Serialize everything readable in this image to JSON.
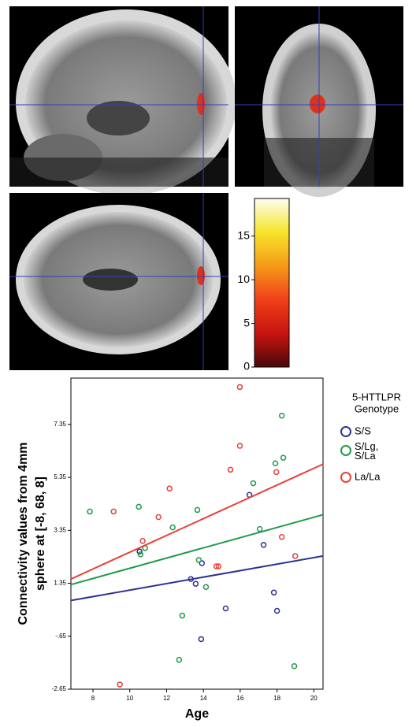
{
  "chart_data": [
    {
      "type": "colorbar",
      "ylim": [
        0,
        19.3
      ],
      "yticks": [
        0,
        5,
        10,
        15
      ],
      "colors": [
        "#4a0808",
        "#c8140f",
        "#f0401a",
        "#f59a18",
        "#f5e42a",
        "#fffff2"
      ]
    },
    {
      "type": "scatter",
      "y_label": [
        "Connectivity values from 4mm",
        "sphere at [-8, 68, 8]"
      ],
      "x_label": "Age",
      "legend_title": [
        "5-HTTLPR",
        "Genotype"
      ],
      "xlim": [
        6.8,
        20.5
      ],
      "xticks": [
        8,
        10,
        12,
        14,
        16,
        18,
        20
      ],
      "ylim": [
        -2.65,
        9.1
      ],
      "yticks": [
        {
          "value": -2.65,
          "label": "-2.65"
        },
        {
          "value": -0.65,
          "label": "-.65"
        },
        1.35,
        3.35,
        5.35,
        7.35
      ],
      "series": [
        {
          "name": "S/S",
          "color": "#2e3192",
          "x": [
            10.53,
            13.92,
            13.32,
            13.58,
            16.5,
            17.27,
            17.83,
            18.0,
            15.21,
            13.88
          ],
          "values": [
            2.55,
            2.11,
            1.51,
            1.33,
            4.69,
            2.8,
            1.0,
            0.31,
            0.4,
            -0.76
          ],
          "fit": {
            "x": [
              6.8,
              20.5
            ],
            "y": [
              0.7,
              2.38
            ]
          }
        },
        {
          "name": "S/Lg, S/La",
          "color": "#1f9a4a",
          "x": [
            7.83,
            10.49,
            10.58,
            10.83,
            12.33,
            13.67,
            13.75,
            14.14,
            12.85,
            12.68,
            16.71,
            17.06,
            17.91,
            18.34,
            18.26,
            18.94
          ],
          "values": [
            4.06,
            4.24,
            2.44,
            2.68,
            3.46,
            4.12,
            2.23,
            1.21,
            0.13,
            -1.54,
            5.13,
            3.4,
            5.88,
            6.09,
            7.68,
            -1.78
          ],
          "fit": {
            "x": [
              6.8,
              20.5
            ],
            "y": [
              1.3,
              3.94
            ]
          }
        },
        {
          "name": "La/La",
          "color": "#e8403a",
          "x": [
            9.12,
            10.7,
            11.56,
            12.16,
            14.7,
            14.82,
            15.47,
            15.98,
            15.98,
            17.96,
            18.26,
            18.99,
            9.46
          ],
          "values": [
            4.06,
            2.95,
            3.85,
            4.93,
            1.99,
            1.99,
            5.64,
            8.76,
            6.54,
            5.55,
            3.1,
            2.38,
            -2.47
          ],
          "fit": {
            "x": [
              6.8,
              20.5
            ],
            "y": [
              1.51,
              5.85
            ]
          }
        }
      ]
    }
  ]
}
